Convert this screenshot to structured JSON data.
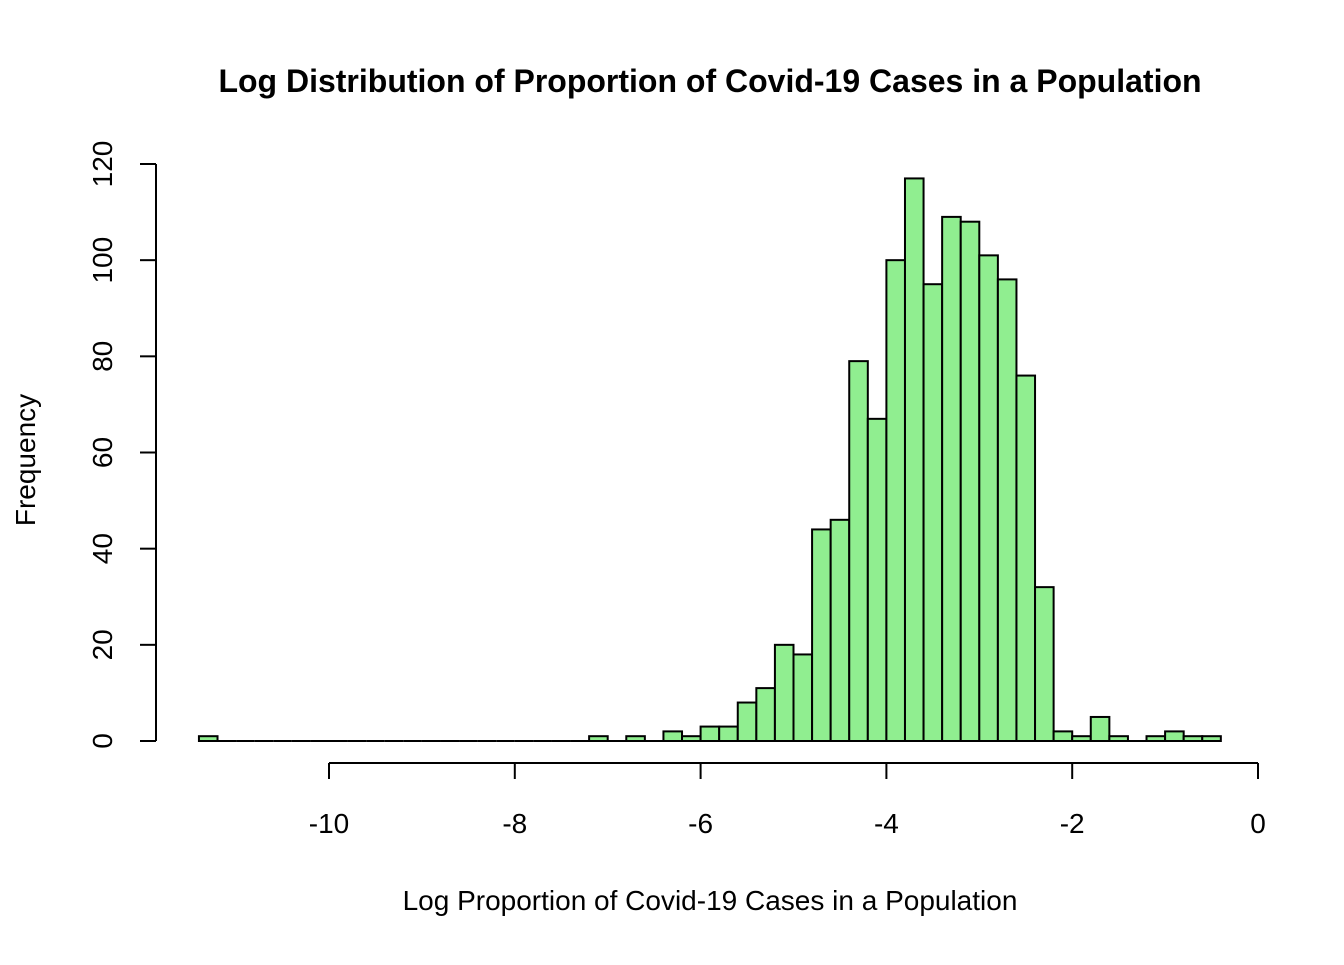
{
  "colors": {
    "bar_fill": "#90EE90",
    "bar_stroke": "#000000",
    "axis": "#000000",
    "background": "#ffffff"
  },
  "chart_data": {
    "type": "histogram",
    "title": "Log Distribution of Proportion of Covid-19 Cases in a Population",
    "xlabel": "Log Proportion of Covid-19 Cases in a Population",
    "ylabel": "Frequency",
    "xlim": [
      -11.4,
      -0.4
    ],
    "ylim": [
      0,
      120
    ],
    "bin_width": 0.2,
    "bin_start": -11.4,
    "x_ticks": [
      -10,
      -8,
      -6,
      -4,
      -2,
      0
    ],
    "x_tick_labels": [
      "-10",
      "-8",
      "-6",
      "-4",
      "-2",
      "0"
    ],
    "y_ticks": [
      0,
      20,
      40,
      60,
      80,
      100,
      120
    ],
    "y_tick_labels": [
      "0",
      "20",
      "40",
      "60",
      "80",
      "100",
      "120"
    ],
    "grid": false,
    "legend": "none",
    "counts": [
      1,
      0,
      0,
      0,
      0,
      0,
      0,
      0,
      0,
      0,
      0,
      0,
      0,
      0,
      0,
      0,
      0,
      0,
      0,
      0,
      0,
      1,
      0,
      1,
      0,
      2,
      1,
      3,
      3,
      8,
      11,
      20,
      18,
      44,
      46,
      79,
      67,
      100,
      117,
      95,
      109,
      108,
      101,
      96,
      76,
      32,
      2,
      1,
      5,
      1,
      0,
      1,
      2,
      1,
      1
    ]
  }
}
